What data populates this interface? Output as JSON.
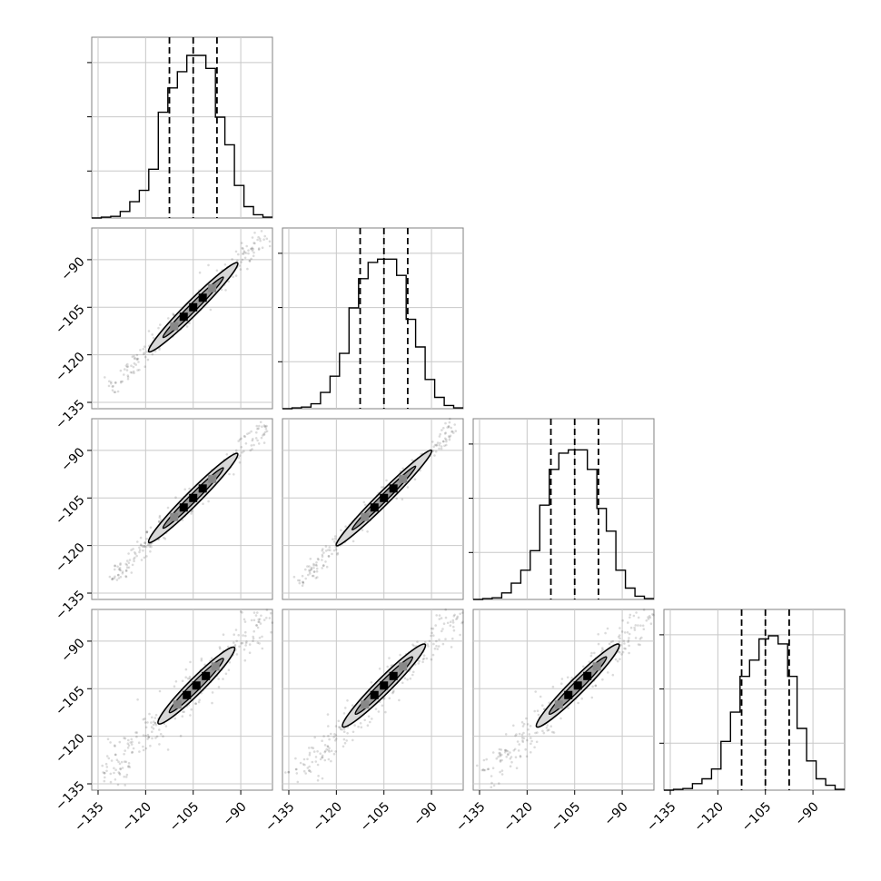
{
  "chart_data": {
    "type": "corner",
    "dimensions": 4,
    "axis_ticks": [
      -135,
      -120,
      -105,
      -90
    ],
    "axis_tick_labels": [
      "−135",
      "−120",
      "−105",
      "−90"
    ],
    "axis_range": [
      -137,
      -80
    ],
    "grid": true,
    "quantile_lines": [
      -112.5,
      -105.0,
      -97.5
    ],
    "histogram": {
      "bin_edges": [
        -137,
        -134,
        -131,
        -128,
        -125,
        -122,
        -119,
        -116,
        -113,
        -110,
        -107,
        -104,
        -101,
        -98,
        -95,
        -92,
        -89,
        -86,
        -83,
        -80
      ],
      "diagonals": [
        {
          "counts": [
            0.0,
            0.005,
            0.01,
            0.04,
            0.1,
            0.17,
            0.3,
            0.65,
            0.8,
            0.9,
            1.0,
            1.0,
            0.92,
            0.62,
            0.45,
            0.2,
            0.07,
            0.02,
            0.005
          ]
        },
        {
          "counts": [
            0.0,
            0.005,
            0.01,
            0.03,
            0.1,
            0.2,
            0.34,
            0.62,
            0.8,
            0.9,
            0.92,
            0.92,
            0.82,
            0.55,
            0.38,
            0.18,
            0.07,
            0.02,
            0.005
          ]
        },
        {
          "counts": [
            0.0,
            0.005,
            0.01,
            0.04,
            0.1,
            0.18,
            0.3,
            0.58,
            0.8,
            0.9,
            0.92,
            0.92,
            0.8,
            0.56,
            0.42,
            0.18,
            0.07,
            0.02,
            0.005
          ]
        },
        {
          "counts": [
            0.0,
            0.005,
            0.01,
            0.04,
            0.07,
            0.13,
            0.3,
            0.48,
            0.7,
            0.8,
            0.93,
            0.95,
            0.9,
            0.7,
            0.38,
            0.18,
            0.07,
            0.03,
            0.005
          ]
        }
      ]
    },
    "pairs": [
      {
        "row": 1,
        "col": 0,
        "center": [
          -105,
          -105
        ],
        "half_length": 14,
        "half_width": 2.2,
        "inner_half_length": 9.5,
        "inner_half_width": 1.2,
        "scatter_extent": [
          -131,
          -82
        ],
        "scatter_spread": 1.5
      },
      {
        "row": 2,
        "col": 0,
        "center": [
          -105,
          -105
        ],
        "half_length": 14,
        "half_width": 2.2,
        "inner_half_length": 9.5,
        "inner_half_width": 1.2,
        "scatter_extent": [
          -131,
          -82
        ],
        "scatter_spread": 1.5
      },
      {
        "row": 2,
        "col": 1,
        "center": [
          -105,
          -105
        ],
        "half_length": 15,
        "half_width": 2.0,
        "inner_half_length": 10,
        "inner_half_width": 1.1,
        "scatter_extent": [
          -132,
          -82
        ],
        "scatter_spread": 1.4
      },
      {
        "row": 3,
        "col": 0,
        "center": [
          -104,
          -104
        ],
        "half_length": 12,
        "half_width": 2.4,
        "inner_half_length": 8.5,
        "inner_half_width": 1.4,
        "scatter_extent": [
          -134,
          -80
        ],
        "scatter_spread": 2.6
      },
      {
        "row": 3,
        "col": 1,
        "center": [
          -105,
          -104
        ],
        "half_length": 13,
        "half_width": 2.4,
        "inner_half_length": 9,
        "inner_half_width": 1.4,
        "scatter_extent": [
          -134,
          -80
        ],
        "scatter_spread": 2.6
      },
      {
        "row": 3,
        "col": 2,
        "center": [
          -104,
          -104
        ],
        "half_length": 13,
        "half_width": 2.4,
        "inner_half_length": 9,
        "inner_half_width": 1.4,
        "scatter_extent": [
          -134,
          -80
        ],
        "scatter_spread": 2.6
      }
    ]
  }
}
